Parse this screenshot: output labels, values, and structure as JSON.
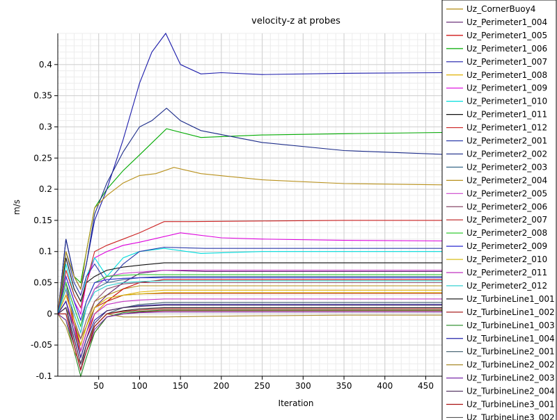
{
  "chart_data": {
    "type": "line",
    "title": "velocity-z at probes",
    "xlabel": "Iteration",
    "ylabel": "m/s",
    "xlim": [
      0,
      470
    ],
    "ylim": [
      -0.1,
      0.45
    ],
    "xticks": [
      50,
      100,
      150,
      200,
      250,
      300,
      350,
      400,
      450
    ],
    "yticks": [
      -0.1,
      -0.05,
      0,
      0.05,
      0.1,
      0.15,
      0.2,
      0.25,
      0.3,
      0.35,
      0.4
    ],
    "grid": true,
    "legend_position": "right",
    "series": [
      {
        "name": "Uz_CornerBuoy4",
        "color": "#b08a10",
        "x": [
          0,
          10,
          20,
          28,
          35,
          45,
          60,
          80,
          100,
          130,
          180,
          250,
          350,
          470
        ],
        "y": [
          0,
          0.01,
          -0.02,
          -0.04,
          -0.02,
          0.02,
          0.03,
          0.04,
          0.045,
          0.045,
          0.045,
          0.045,
          0.045,
          0.045
        ]
      },
      {
        "name": "Uz_Perimeter1_004",
        "color": "#5a1a6a",
        "x": [
          0,
          10,
          20,
          28,
          35,
          45,
          60,
          80,
          100,
          130,
          180,
          250,
          350,
          470
        ],
        "y": [
          0,
          0.05,
          -0.01,
          -0.06,
          -0.03,
          0.01,
          0.03,
          0.05,
          0.065,
          0.07,
          0.068,
          0.068,
          0.068,
          0.068
        ]
      },
      {
        "name": "Uz_Perimeter1_005",
        "color": "#cc0000",
        "x": [
          0,
          10,
          20,
          28,
          35,
          45,
          60,
          80,
          100,
          130,
          180,
          250,
          350,
          470
        ],
        "y": [
          0,
          0.04,
          -0.02,
          -0.07,
          -0.04,
          0,
          0.02,
          0.04,
          0.05,
          0.055,
          0.055,
          0.055,
          0.055,
          0.055
        ]
      },
      {
        "name": "Uz_Perimeter1_006",
        "color": "#00aa00",
        "x": [
          0,
          10,
          20,
          28,
          35,
          45,
          60,
          80,
          100,
          133,
          175,
          250,
          350,
          470
        ],
        "y": [
          0,
          0.1,
          0.06,
          0.05,
          0.1,
          0.17,
          0.2,
          0.23,
          0.255,
          0.297,
          0.283,
          0.287,
          0.289,
          0.291
        ]
      },
      {
        "name": "Uz_Perimeter1_007",
        "color": "#1a1aaa",
        "x": [
          0,
          10,
          20,
          28,
          35,
          45,
          60,
          80,
          100,
          115,
          132,
          150,
          175,
          200,
          250,
          350,
          470
        ],
        "y": [
          0,
          0.12,
          0.06,
          0.04,
          0.08,
          0.15,
          0.2,
          0.28,
          0.37,
          0.42,
          0.45,
          0.4,
          0.385,
          0.387,
          0.384,
          0.386,
          0.387
        ]
      },
      {
        "name": "Uz_Perimeter1_008",
        "color": "#e0b000",
        "x": [
          0,
          10,
          20,
          28,
          35,
          45,
          60,
          80,
          100,
          130,
          180,
          250,
          350,
          470
        ],
        "y": [
          0,
          0.02,
          -0.03,
          -0.06,
          -0.03,
          0,
          0.02,
          0.03,
          0.035,
          0.038,
          0.038,
          0.038,
          0.038,
          0.038
        ]
      },
      {
        "name": "Uz_Perimeter1_009",
        "color": "#dd00dd",
        "x": [
          0,
          10,
          20,
          28,
          35,
          45,
          60,
          80,
          100,
          150,
          200,
          250,
          350,
          470
        ],
        "y": [
          0,
          0.06,
          0.02,
          0,
          0.05,
          0.09,
          0.1,
          0.11,
          0.115,
          0.13,
          0.122,
          0.12,
          0.118,
          0.117
        ]
      },
      {
        "name": "Uz_Perimeter1_010",
        "color": "#00dddd",
        "x": [
          0,
          10,
          20,
          28,
          35,
          45,
          60,
          80,
          100,
          130,
          175,
          250,
          350,
          470
        ],
        "y": [
          0,
          0.08,
          0.03,
          0.01,
          0.06,
          0.09,
          0.06,
          0.09,
          0.1,
          0.105,
          0.097,
          0.1,
          0.1,
          0.1
        ]
      },
      {
        "name": "Uz_Perimeter1_011",
        "color": "#111111",
        "x": [
          0,
          10,
          20,
          28,
          35,
          45,
          60,
          80,
          100,
          130,
          180,
          250,
          350,
          470
        ],
        "y": [
          0,
          0.09,
          0.04,
          0.02,
          0.05,
          0.06,
          0.07,
          0.075,
          0.078,
          0.082,
          0.082,
          0.082,
          0.082,
          0.082
        ]
      },
      {
        "name": "Uz_Perimeter1_012",
        "color": "#cc2222",
        "x": [
          0,
          10,
          20,
          28,
          35,
          45,
          60,
          80,
          100,
          130,
          160,
          250,
          350,
          470
        ],
        "y": [
          0,
          0.07,
          0.03,
          0.01,
          0.05,
          0.1,
          0.11,
          0.12,
          0.13,
          0.148,
          0.148,
          0.149,
          0.15,
          0.15
        ]
      },
      {
        "name": "Uz_Perimeter2_001",
        "color": "#2a3aaa",
        "x": [
          0,
          10,
          20,
          28,
          35,
          45,
          60,
          80,
          100,
          130,
          180,
          250,
          350,
          470
        ],
        "y": [
          0,
          0.1,
          0.05,
          0.03,
          0.06,
          0.08,
          0.05,
          0.08,
          0.1,
          0.107,
          0.105,
          0.105,
          0.105,
          0.105
        ]
      },
      {
        "name": "Uz_Perimeter2_002",
        "color": "#1a2a88",
        "x": [
          0,
          10,
          20,
          28,
          35,
          45,
          60,
          80,
          100,
          115,
          133,
          150,
          175,
          250,
          350,
          470
        ],
        "y": [
          0,
          0.12,
          0.06,
          0.04,
          0.08,
          0.16,
          0.21,
          0.26,
          0.3,
          0.31,
          0.33,
          0.31,
          0.294,
          0.275,
          0.262,
          0.256
        ]
      },
      {
        "name": "Uz_Perimeter2_003",
        "color": "#3a6a8a",
        "x": [
          0,
          10,
          20,
          28,
          35,
          45,
          60,
          80,
          100,
          130,
          180,
          250,
          350,
          470
        ],
        "y": [
          0,
          0.05,
          0.01,
          -0.02,
          0.01,
          0.04,
          0.05,
          0.055,
          0.058,
          0.06,
          0.06,
          0.06,
          0.06,
          0.06
        ]
      },
      {
        "name": "Uz_Perimeter2_004",
        "color": "#b8901a",
        "x": [
          0,
          10,
          20,
          28,
          35,
          45,
          60,
          80,
          100,
          120,
          142,
          175,
          250,
          350,
          470
        ],
        "y": [
          0,
          0.1,
          0.06,
          0.04,
          0.1,
          0.17,
          0.19,
          0.21,
          0.222,
          0.225,
          0.235,
          0.225,
          0.215,
          0.209,
          0.207
        ]
      },
      {
        "name": "Uz_Perimeter2_005",
        "color": "#cc44cc",
        "x": [
          0,
          10,
          20,
          28,
          35,
          45,
          60,
          80,
          100,
          130,
          180,
          250,
          350,
          470
        ],
        "y": [
          0,
          0.04,
          0,
          -0.03,
          0.01,
          0.04,
          0.06,
          0.065,
          0.067,
          0.07,
          0.07,
          0.07,
          0.07,
          0.07
        ]
      },
      {
        "name": "Uz_Perimeter2_006",
        "color": "#8a4a6a",
        "x": [
          0,
          10,
          20,
          28,
          35,
          45,
          60,
          80,
          100,
          130,
          180,
          250,
          350,
          470
        ],
        "y": [
          0,
          0.03,
          -0.01,
          -0.04,
          -0.01,
          0.02,
          0.04,
          0.048,
          0.05,
          0.05,
          0.05,
          0.05,
          0.05,
          0.05
        ]
      },
      {
        "name": "Uz_Perimeter2_007",
        "color": "#bb1a1a",
        "x": [
          0,
          10,
          20,
          28,
          35,
          45,
          60,
          80,
          100,
          130,
          180,
          250,
          350,
          470
        ],
        "y": [
          0,
          0.02,
          -0.02,
          -0.05,
          -0.02,
          0.01,
          0.02,
          0.03,
          0.032,
          0.033,
          0.033,
          0.033,
          0.033,
          0.033
        ]
      },
      {
        "name": "Uz_Perimeter2_008",
        "color": "#33cc33",
        "x": [
          0,
          10,
          20,
          28,
          35,
          45,
          60,
          80,
          100,
          130,
          180,
          250,
          350,
          470
        ],
        "y": [
          0,
          0.05,
          0.01,
          -0.02,
          0.02,
          0.05,
          0.06,
          0.062,
          0.063,
          0.063,
          0.063,
          0.063,
          0.063,
          0.063
        ]
      },
      {
        "name": "Uz_Perimeter2_009",
        "color": "#2a2ad0",
        "x": [
          0,
          10,
          20,
          28,
          35,
          45,
          60,
          80,
          100,
          130,
          180,
          250,
          350,
          470
        ],
        "y": [
          0,
          0.06,
          0.02,
          -0.01,
          0.02,
          0.05,
          0.055,
          0.057,
          0.058,
          0.058,
          0.058,
          0.058,
          0.058,
          0.058
        ]
      },
      {
        "name": "Uz_Perimeter2_010",
        "color": "#d4b800",
        "x": [
          0,
          10,
          20,
          28,
          35,
          45,
          60,
          80,
          100,
          130,
          180,
          250,
          350,
          470
        ],
        "y": [
          0,
          0.03,
          -0.01,
          -0.05,
          -0.02,
          0.01,
          0.025,
          0.03,
          0.032,
          0.034,
          0.034,
          0.034,
          0.034,
          0.034
        ]
      },
      {
        "name": "Uz_Perimeter2_011",
        "color": "#c030c0",
        "x": [
          0,
          10,
          20,
          28,
          35,
          45,
          60,
          80,
          100,
          130,
          180,
          250,
          350,
          470
        ],
        "y": [
          0,
          0.02,
          -0.02,
          -0.06,
          -0.03,
          0,
          0.015,
          0.02,
          0.022,
          0.024,
          0.024,
          0.024,
          0.024,
          0.024
        ]
      },
      {
        "name": "Uz_Perimeter2_012",
        "color": "#22cccc",
        "x": [
          0,
          10,
          20,
          28,
          35,
          45,
          60,
          80,
          100,
          130,
          180,
          250,
          350,
          470
        ],
        "y": [
          0,
          0.04,
          0,
          -0.03,
          0.01,
          0.035,
          0.045,
          0.05,
          0.052,
          0.053,
          0.053,
          0.053,
          0.053,
          0.053
        ]
      },
      {
        "name": "Uz_TurbineLine1_001",
        "color": "#222222",
        "x": [
          0,
          10,
          20,
          28,
          35,
          45,
          60,
          80,
          100,
          130,
          180,
          250,
          350,
          470
        ],
        "y": [
          0,
          0.01,
          -0.04,
          -0.08,
          -0.05,
          -0.02,
          0,
          0.005,
          0.008,
          0.01,
          0.01,
          0.01,
          0.01,
          0.01
        ]
      },
      {
        "name": "Uz_TurbineLine1_002",
        "color": "#aa2222",
        "x": [
          0,
          10,
          20,
          28,
          35,
          45,
          60,
          80,
          100,
          130,
          180,
          250,
          350,
          470
        ],
        "y": [
          0,
          0,
          -0.05,
          -0.09,
          -0.06,
          -0.03,
          -0.005,
          0,
          0.003,
          0.005,
          0.005,
          0.005,
          0.005,
          0.005
        ]
      },
      {
        "name": "Uz_TurbineLine1_003",
        "color": "#228822",
        "x": [
          0,
          10,
          20,
          28,
          35,
          45,
          60,
          80,
          100,
          130,
          180,
          250,
          350,
          470
        ],
        "y": [
          0,
          -0.01,
          -0.06,
          -0.1,
          -0.07,
          -0.03,
          -0.005,
          0.002,
          0.004,
          0.006,
          0.006,
          0.006,
          0.006,
          0.006
        ]
      },
      {
        "name": "Uz_TurbineLine1_004",
        "color": "#2222aa",
        "x": [
          0,
          10,
          20,
          28,
          35,
          45,
          60,
          80,
          100,
          130,
          180,
          250,
          350,
          470
        ],
        "y": [
          0,
          0.02,
          -0.03,
          -0.07,
          -0.04,
          -0.01,
          0.005,
          0.01,
          0.013,
          0.015,
          0.015,
          0.015,
          0.015,
          0.015
        ]
      },
      {
        "name": "Uz_TurbineLine2_001",
        "color": "#3a5a6a",
        "x": [
          0,
          10,
          20,
          28,
          35,
          45,
          60,
          80,
          100,
          130,
          180,
          250,
          350,
          470
        ],
        "y": [
          0,
          0.01,
          -0.05,
          -0.09,
          -0.05,
          -0.02,
          0,
          0.01,
          0.015,
          0.018,
          0.018,
          0.018,
          0.018,
          0.018
        ]
      },
      {
        "name": "Uz_TurbineLine2_002",
        "color": "#a88a2a",
        "x": [
          0,
          10,
          20,
          28,
          35,
          45,
          60,
          80,
          100,
          130,
          180,
          250,
          350,
          470
        ],
        "y": [
          0,
          -0.02,
          -0.06,
          -0.08,
          -0.05,
          -0.02,
          0,
          -0.005,
          -0.005,
          -0.005,
          -0.004,
          -0.003,
          -0.002,
          -0.002
        ]
      },
      {
        "name": "Uz_TurbineLine2_003",
        "color": "#7a2aaa",
        "x": [
          0,
          10,
          20,
          28,
          35,
          45,
          60,
          80,
          100,
          130,
          180,
          250,
          350,
          470
        ],
        "y": [
          0,
          -0.01,
          -0.05,
          -0.09,
          -0.06,
          -0.025,
          -0.005,
          0,
          0.002,
          0.003,
          0.003,
          0.003,
          0.003,
          0.003
        ]
      },
      {
        "name": "Uz_TurbineLine2_004",
        "color": "#4a2a5a",
        "x": [
          0,
          10,
          20,
          28,
          35,
          45,
          60,
          80,
          100,
          130,
          180,
          250,
          350,
          470
        ],
        "y": [
          0,
          0.01,
          -0.04,
          -0.08,
          -0.05,
          -0.015,
          0.005,
          0.01,
          0.012,
          0.014,
          0.014,
          0.014,
          0.014,
          0.014
        ]
      },
      {
        "name": "Uz_TurbineLine3_001",
        "color": "#aa1111",
        "x": [
          0,
          10,
          20,
          28,
          35,
          45,
          60,
          80,
          100,
          130,
          180,
          250,
          350,
          470
        ],
        "y": [
          0,
          0,
          -0.05,
          -0.09,
          -0.06,
          -0.02,
          0,
          0.004,
          0.006,
          0.008,
          0.008,
          0.008,
          0.008,
          0.008
        ]
      }
    ]
  },
  "legend": {
    "overflow_label": "Uz_TurbineLine3_002"
  }
}
